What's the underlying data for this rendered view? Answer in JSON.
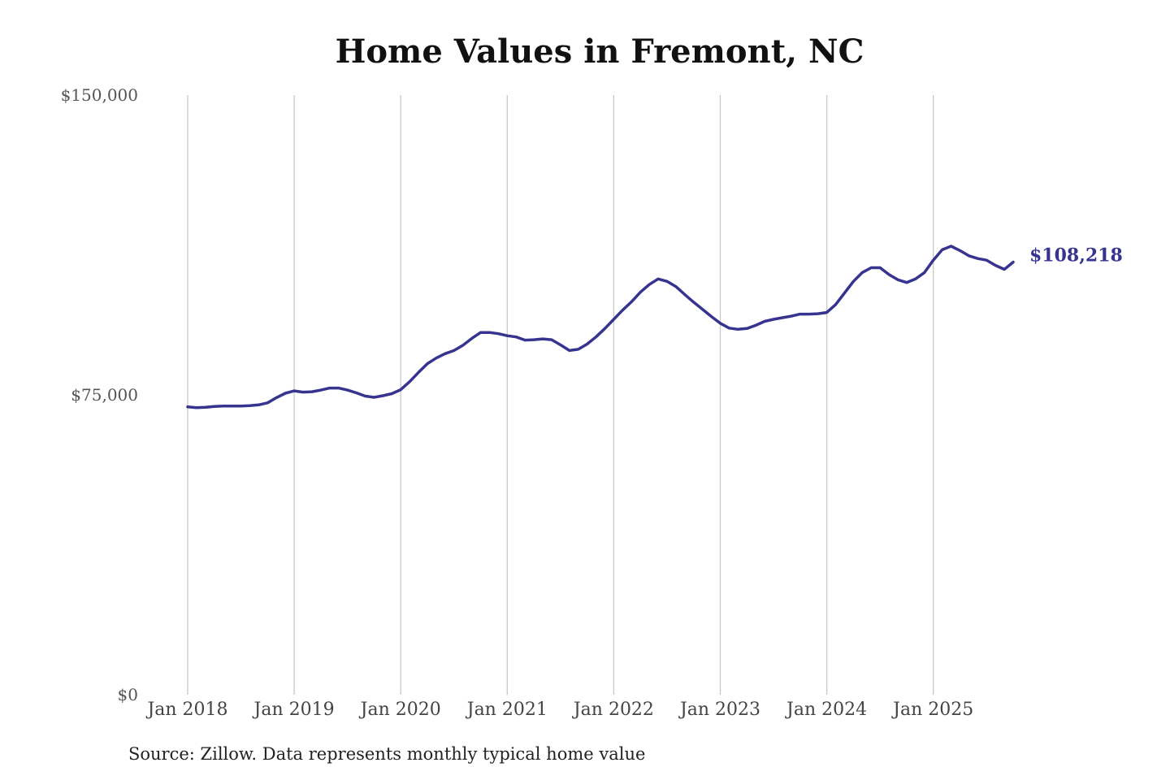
{
  "chart_data": {
    "type": "line",
    "title": "Home Values in Fremont, NC",
    "xlabel": "",
    "ylabel": "",
    "x_start": "2018-01",
    "x_ticks": [
      "Jan 2018",
      "Jan 2019",
      "Jan 2020",
      "Jan 2021",
      "Jan 2022",
      "Jan 2023",
      "Jan 2024",
      "Jan 2025"
    ],
    "y_ticks": [
      "$0",
      "$75,000",
      "$150,000"
    ],
    "ylim": [
      0,
      150000
    ],
    "grid": "vertical",
    "line_color": "#37348f",
    "series": [
      {
        "end_label": "$108,218",
        "x": [
          "2018-01",
          "2018-02",
          "2018-03",
          "2018-04",
          "2018-05",
          "2018-06",
          "2018-07",
          "2018-08",
          "2018-09",
          "2018-10",
          "2018-11",
          "2018-12",
          "2019-01",
          "2019-02",
          "2019-03",
          "2019-04",
          "2019-05",
          "2019-06",
          "2019-07",
          "2019-08",
          "2019-09",
          "2019-10",
          "2019-11",
          "2019-12",
          "2020-01",
          "2020-02",
          "2020-03",
          "2020-04",
          "2020-05",
          "2020-06",
          "2020-07",
          "2020-08",
          "2020-09",
          "2020-10",
          "2020-11",
          "2020-12",
          "2021-01",
          "2021-02",
          "2021-03",
          "2021-04",
          "2021-05",
          "2021-06",
          "2021-07",
          "2021-08",
          "2021-09",
          "2021-10",
          "2021-11",
          "2021-12",
          "2022-01",
          "2022-02",
          "2022-03",
          "2022-04",
          "2022-05",
          "2022-06",
          "2022-07",
          "2022-08",
          "2022-09",
          "2022-10",
          "2022-11",
          "2022-12",
          "2023-01",
          "2023-02",
          "2023-03",
          "2023-04",
          "2023-05",
          "2023-06",
          "2023-07",
          "2023-08",
          "2023-09",
          "2023-10",
          "2023-11",
          "2023-12",
          "2024-01",
          "2024-02",
          "2024-03",
          "2024-04",
          "2024-05",
          "2024-06",
          "2024-07",
          "2024-08",
          "2024-09",
          "2024-10",
          "2024-11",
          "2024-12",
          "2025-01",
          "2025-02",
          "2025-03",
          "2025-04",
          "2025-05",
          "2025-06",
          "2025-07",
          "2025-08",
          "2025-09",
          "2025-10"
        ],
        "values": [
          72000,
          71800,
          71900,
          72100,
          72200,
          72200,
          72200,
          72300,
          72500,
          73000,
          74300,
          75400,
          76000,
          75700,
          75800,
          76200,
          76700,
          76700,
          76200,
          75500,
          74700,
          74400,
          74800,
          75300,
          76300,
          78300,
          80600,
          82800,
          84200,
          85300,
          86100,
          87400,
          89100,
          90600,
          90600,
          90300,
          89800,
          89500,
          88700,
          88800,
          89000,
          88800,
          87500,
          86100,
          86400,
          87700,
          89500,
          91600,
          93900,
          96200,
          98300,
          100700,
          102600,
          104000,
          103400,
          102100,
          100100,
          98200,
          96400,
          94600,
          92900,
          91700,
          91400,
          91600,
          92400,
          93400,
          93900,
          94300,
          94700,
          95200,
          95200,
          95300,
          95600,
          97600,
          100500,
          103400,
          105600,
          106800,
          106800,
          105100,
          103800,
          103100,
          104000,
          105600,
          108700,
          111300,
          112200,
          111100,
          109800,
          109100,
          108700,
          107400,
          106400,
          108218
        ]
      }
    ]
  },
  "footer": {
    "source": "Source: Zillow. Data represents monthly typical home value"
  }
}
